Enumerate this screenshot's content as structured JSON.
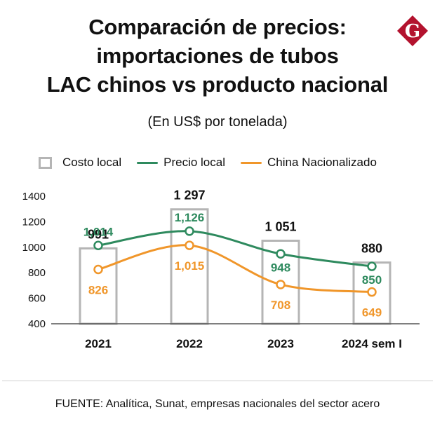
{
  "header": {
    "title_lines": [
      "Comparación de precios:",
      "importaciones de tubos",
      "LAC chinos vs producto nacional"
    ],
    "subtitle": "(En US$ por tonelada)",
    "logo_letter": "G"
  },
  "colors": {
    "green": "#2e8a5e",
    "orange": "#f0962a",
    "bar_border": "#b5b5b5",
    "axis": "#555555",
    "logo_red": "#b3122e"
  },
  "legend": [
    {
      "label": "Costo local",
      "marker": "box",
      "color": "#b5b5b5"
    },
    {
      "label": "Precio local",
      "marker": "line",
      "color": "#2e8a5e"
    },
    {
      "label": "China Nacionalizado",
      "marker": "line",
      "color": "#f0962a"
    }
  ],
  "chart_data": {
    "type": "bar",
    "categories": [
      "2021",
      "2022",
      "2023",
      "2024 sem I"
    ],
    "ylim": [
      400,
      1400
    ],
    "yticks": [
      "400",
      "600",
      "800",
      "1000",
      "1200",
      "1400"
    ],
    "grid": false,
    "legend_position": "top",
    "series": [
      {
        "name": "Costo local",
        "kind": "bar",
        "values": [
          991,
          1297,
          1051,
          880
        ],
        "labels": [
          "991",
          "1 297",
          "1 051",
          "880"
        ],
        "color": "#b5b5b5"
      },
      {
        "name": "Precio local",
        "kind": "line",
        "values": [
          1014,
          1126,
          948,
          850
        ],
        "labels": [
          "1,014",
          "1,126",
          "948",
          "850"
        ],
        "color": "#2e8a5e"
      },
      {
        "name": "China Nacionalizado",
        "kind": "line",
        "values": [
          826,
          1015,
          708,
          649
        ],
        "labels": [
          "826",
          "1,015",
          "708",
          "649"
        ],
        "color": "#f0962a"
      }
    ]
  },
  "footer": {
    "source": "FUENTE: Analítica, Sunat, empresas nacionales del sector acero"
  }
}
